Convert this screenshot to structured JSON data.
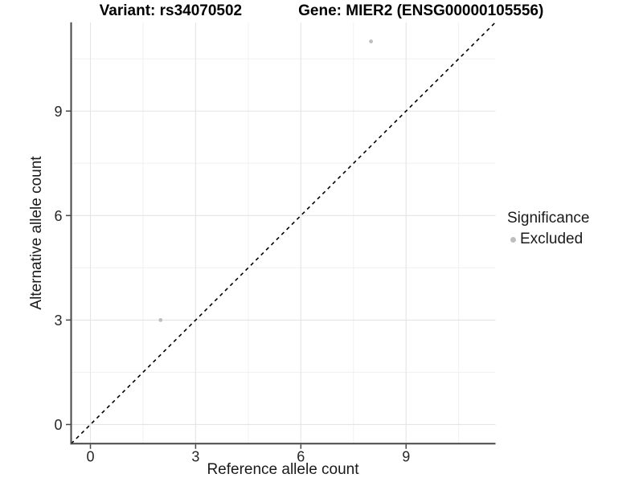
{
  "title": {
    "variant": "Variant: rs34070502",
    "gene": "Gene: MIER2 (ENSG00000105556)"
  },
  "x_axis": {
    "label": "Reference allele count",
    "tick_labels": [
      "0",
      "3",
      "6",
      "9"
    ]
  },
  "y_axis": {
    "label": "Alternative allele count",
    "tick_labels": [
      "0",
      "3",
      "6",
      "9"
    ]
  },
  "legend": {
    "title": "Significance",
    "items": [
      {
        "label": "Excluded",
        "color": "#bebebe"
      }
    ]
  },
  "colors": {
    "point": "#bebebe",
    "grid_major": "#e4e4e4",
    "grid_minor": "#f0f0f0",
    "axis_line": "#474747",
    "tick_mark": "#474747",
    "tick_text": "#262626",
    "identity_line": "#000000"
  },
  "chart_data": {
    "type": "scatter",
    "title": "Variant: rs34070502    Gene: MIER2 (ENSG00000105556)",
    "xlabel": "Reference allele count",
    "ylabel": "Alternative allele count",
    "xlim": [
      -0.55,
      11.55
    ],
    "ylim": [
      -0.55,
      11.55
    ],
    "major_ticks": [
      0,
      3,
      6,
      9
    ],
    "minor_gridlines": [
      1.5,
      4.5,
      7.5,
      10.5
    ],
    "grid": true,
    "legend_position": "right",
    "series": [
      {
        "name": "Excluded",
        "color": "#bebebe",
        "points": [
          {
            "x": 2,
            "y": 3
          },
          {
            "x": 8,
            "y": 11
          }
        ]
      }
    ],
    "reference_line": {
      "equation": "y = x",
      "style": "dashed",
      "color": "#000000"
    }
  }
}
